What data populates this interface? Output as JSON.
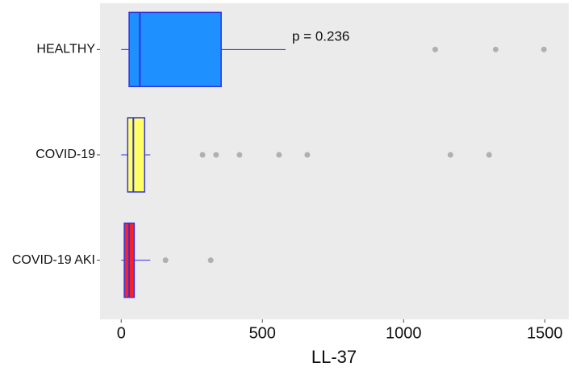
{
  "chart_data": {
    "type": "boxplot",
    "orientation": "horizontal",
    "categories": [
      "HEALTHY",
      "COVID-19",
      "COVID-19 AKI"
    ],
    "boxes": [
      {
        "min": 0,
        "q1": 28,
        "median": 66,
        "q3": 354,
        "max": 582,
        "outliers": [
          1112,
          1326,
          1497
        ],
        "color": "#1e90ff"
      },
      {
        "min": 0,
        "q1": 23,
        "median": 43,
        "q3": 83,
        "max": 103,
        "outliers": [
          288,
          336,
          419,
          559,
          659,
          1166,
          1303
        ],
        "color": "#ffff66"
      },
      {
        "min": 0,
        "q1": 11,
        "median": 28,
        "q3": 46,
        "max": 103,
        "outliers": [
          157,
          317
        ],
        "color": "#ff2020"
      }
    ],
    "edge_color": "#3333dd",
    "outlier_color": "#b0b0b0",
    "xlabel": "LL-37",
    "xlim": [
      -75,
      1585
    ],
    "xticks": [
      0,
      500,
      1000,
      1500
    ],
    "annotation": "p = 0.236",
    "grid": false
  }
}
